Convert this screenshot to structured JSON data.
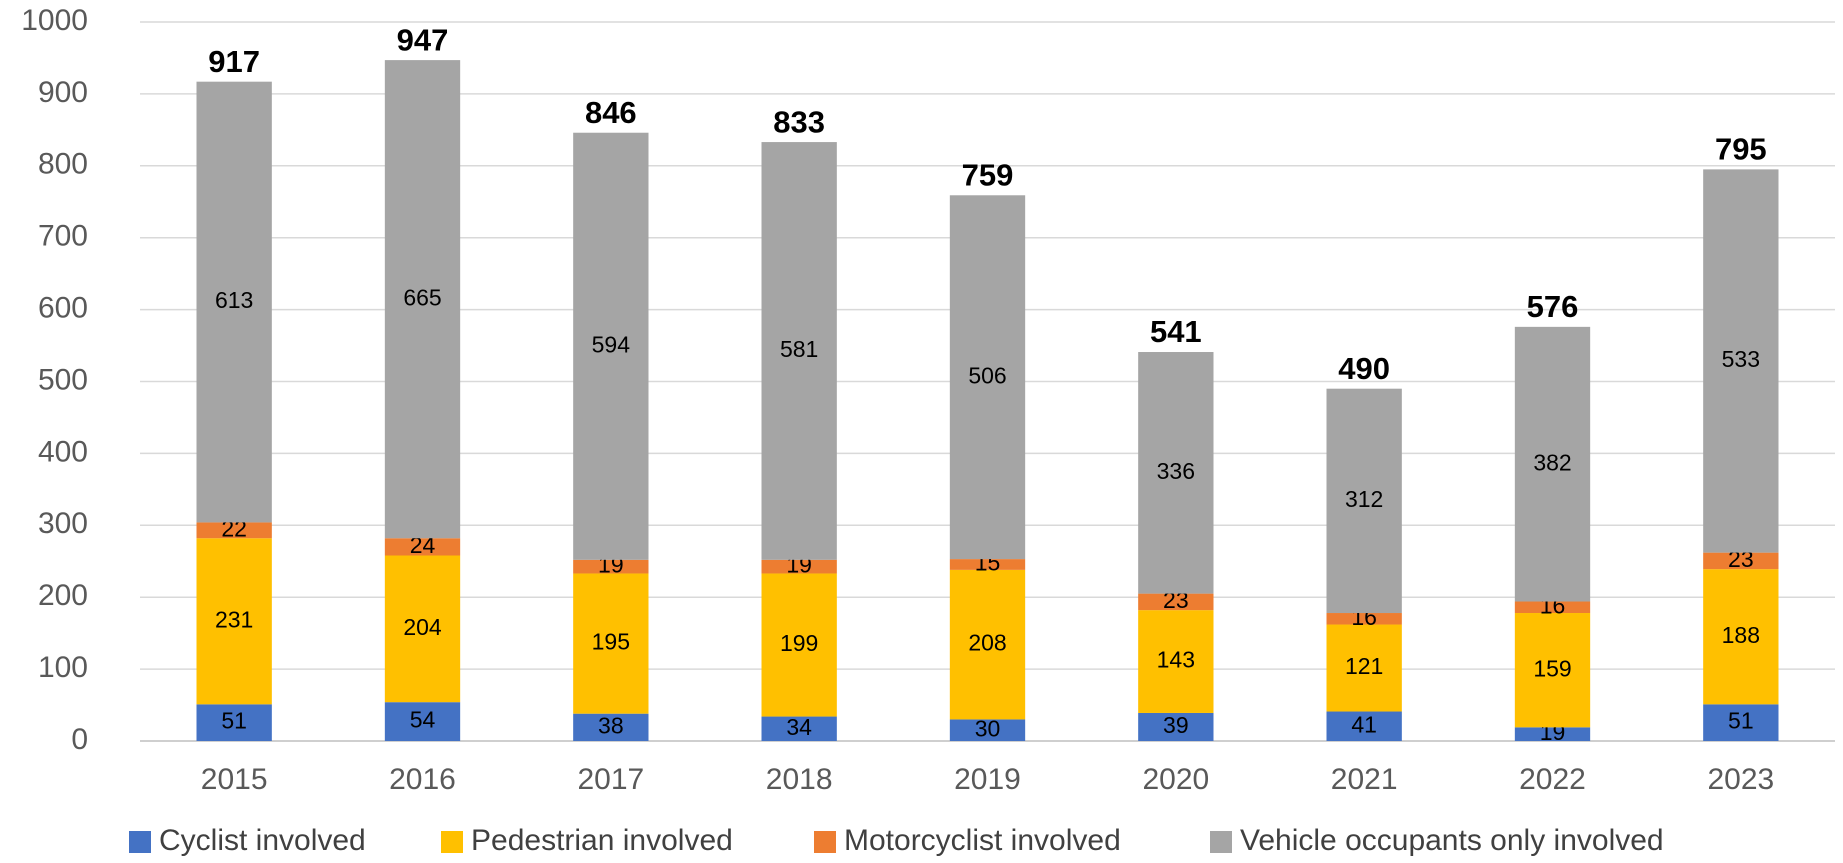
{
  "chart_data": {
    "type": "stacked_bar",
    "categories": [
      "2015",
      "2016",
      "2017",
      "2018",
      "2019",
      "2020",
      "2021",
      "2022",
      "2023"
    ],
    "series": [
      {
        "name": "Cyclist involved",
        "color": "#4472c4",
        "values": [
          51,
          54,
          38,
          34,
          30,
          39,
          41,
          19,
          51
        ]
      },
      {
        "name": "Pedestrian involved",
        "color": "#ffc000",
        "values": [
          231,
          204,
          195,
          199,
          208,
          143,
          121,
          159,
          188
        ]
      },
      {
        "name": "Motorcyclist involved",
        "color": "#ed7d31",
        "values": [
          22,
          24,
          19,
          19,
          15,
          23,
          16,
          16,
          23
        ]
      },
      {
        "name": "Vehicle occupants only involved",
        "color": "#a5a5a5",
        "values": [
          613,
          665,
          594,
          581,
          506,
          336,
          312,
          382,
          533
        ]
      }
    ],
    "totals": [
      917,
      947,
      846,
      833,
      759,
      541,
      490,
      576,
      795
    ],
    "ylim": [
      0,
      1000
    ],
    "yticks": [
      0,
      100,
      200,
      300,
      400,
      500,
      600,
      700,
      800,
      900,
      1000
    ],
    "grid": true,
    "legend": "bottom"
  }
}
